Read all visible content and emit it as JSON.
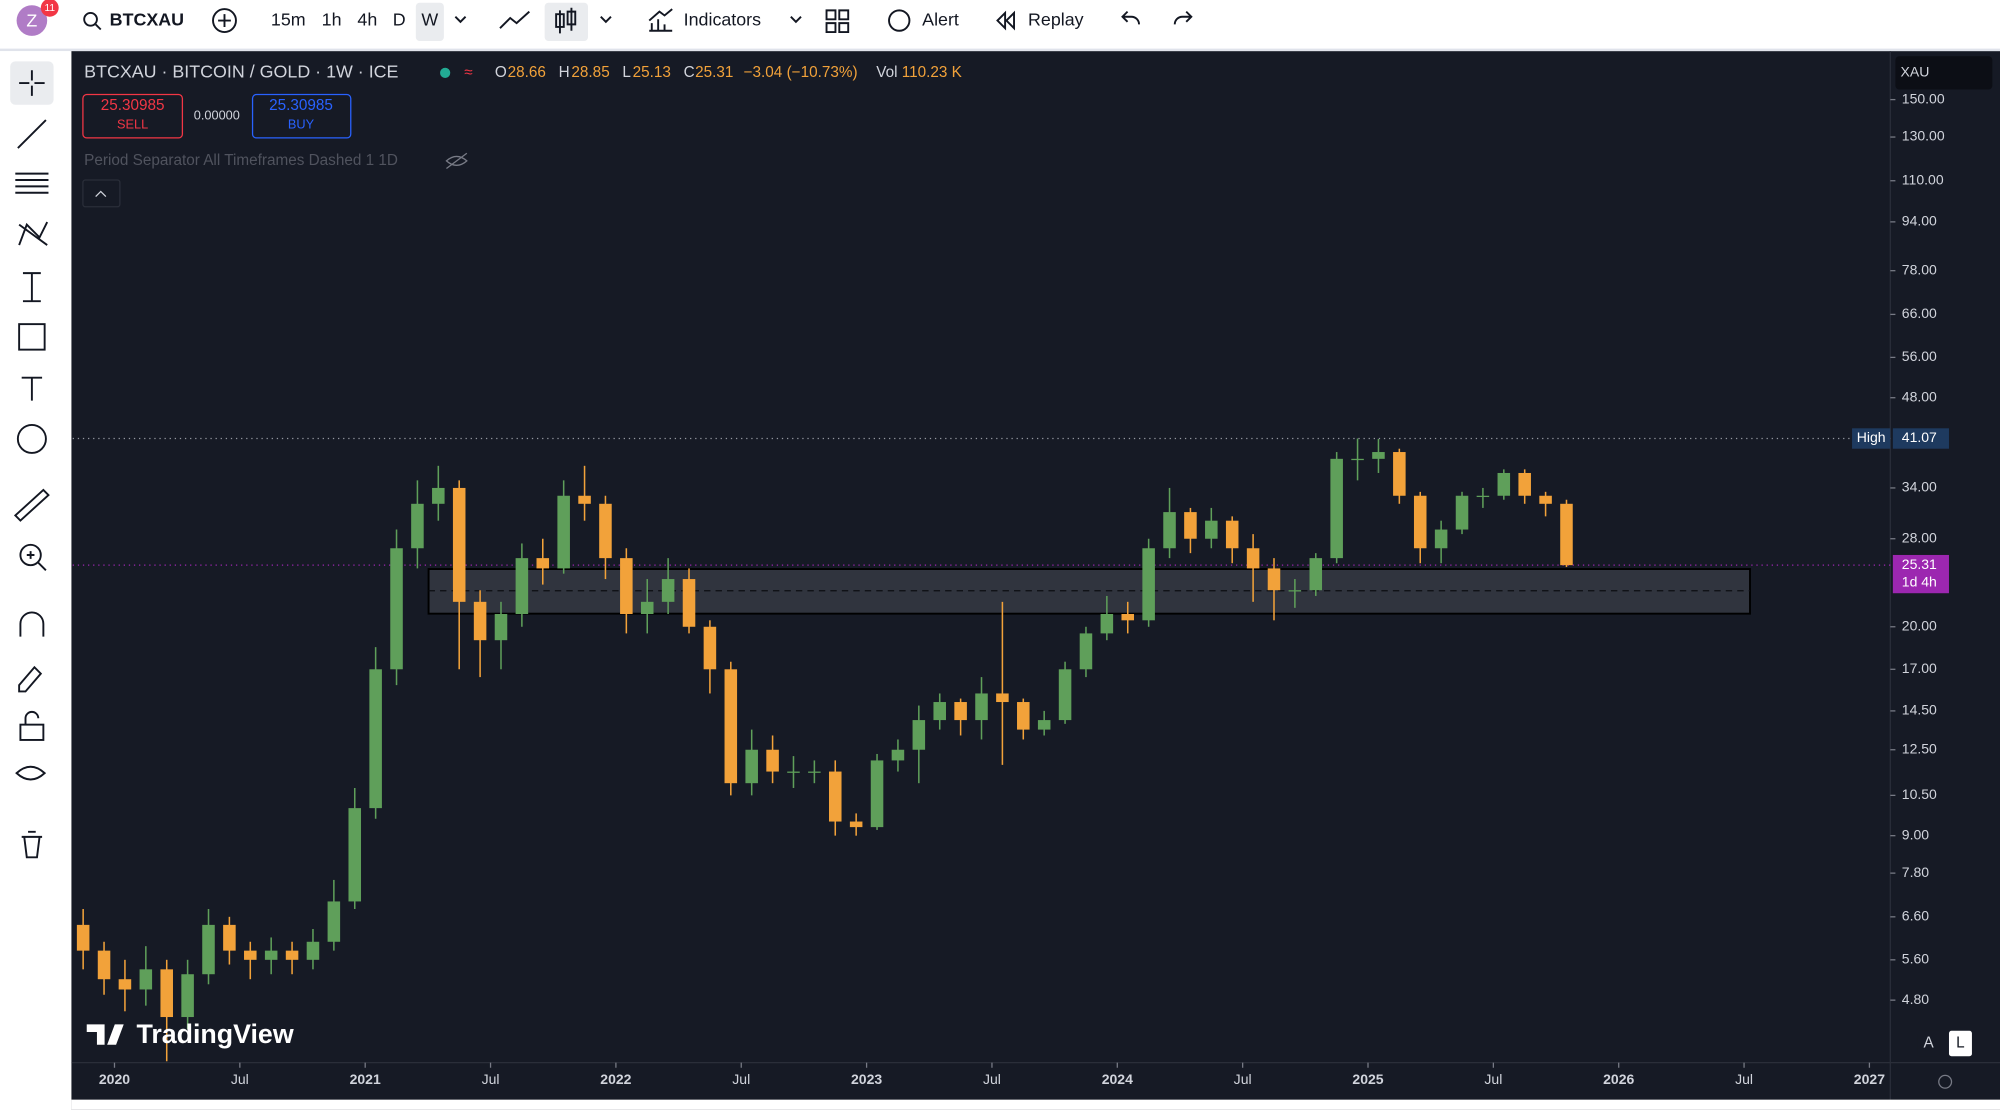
{
  "toolbar": {
    "avatar": "Z",
    "badge": "11",
    "symbol": "BTCXAU",
    "intervals": [
      "15m",
      "1h",
      "4h",
      "D",
      "W"
    ],
    "indicators": "Indicators",
    "alert": "Alert",
    "replay": "Replay"
  },
  "legend": {
    "title": "BTCXAU · BITCOIN / GOLD · 1W · ICE",
    "o_label": "O",
    "o": "28.66",
    "h_label": "H",
    "h": "28.85",
    "l_label": "L",
    "l": "25.13",
    "c_label": "C",
    "c": "25.31",
    "change": "−3.04 (−10.73%)",
    "vol_label": "Vol",
    "vol": "110.23 K",
    "sell_price": "25.30985",
    "sell": "SELL",
    "spread": "0.00000",
    "buy_price": "25.30985",
    "buy": "BUY",
    "indicator": "Period Separator All Timeframes Dashed 1 1D"
  },
  "price_axis_label": "XAU",
  "watermark": "TradingView",
  "scale_buttons": [
    "A",
    "L"
  ],
  "chart_data": {
    "type": "candlestick",
    "log_scale": true,
    "grid": false,
    "up_color": "#5f9f5a",
    "down_color": "#f2a23a",
    "x": [
      "2019-11",
      "2019-12",
      "2020-01",
      "2020-02",
      "2020-03",
      "2020-04",
      "2020-05",
      "2020-06",
      "2020-07",
      "2020-08",
      "2020-09",
      "2020-10",
      "2020-11",
      "2020-12",
      "2021-01",
      "2021-02",
      "2021-03",
      "2021-04",
      "2021-05",
      "2021-06",
      "2021-07",
      "2021-08",
      "2021-09",
      "2021-10",
      "2021-11",
      "2021-12",
      "2022-01",
      "2022-02",
      "2022-03",
      "2022-04",
      "2022-05",
      "2022-06",
      "2022-07",
      "2022-08",
      "2022-09",
      "2022-10",
      "2022-11",
      "2022-12",
      "2023-01",
      "2023-02",
      "2023-03",
      "2023-04",
      "2023-05",
      "2023-06",
      "2023-07",
      "2023-08",
      "2023-09",
      "2023-10",
      "2023-11",
      "2023-12",
      "2024-01",
      "2024-02",
      "2024-03",
      "2024-04",
      "2024-05",
      "2024-06",
      "2024-07",
      "2024-08",
      "2024-09",
      "2024-10",
      "2024-11",
      "2024-12",
      "2025-01",
      "2025-02",
      "2025-03",
      "2025-04",
      "2025-05",
      "2025-06",
      "2025-07",
      "2025-08",
      "2025-09",
      "2025-10"
    ],
    "open": [
      6.4,
      5.8,
      5.2,
      5.0,
      5.4,
      4.5,
      5.3,
      6.4,
      5.8,
      5.6,
      5.8,
      5.6,
      6.0,
      7.0,
      10.0,
      17.0,
      27.0,
      32.0,
      34.0,
      22.0,
      19.0,
      21.0,
      26.0,
      25.0,
      33.0,
      32.0,
      26.0,
      21.0,
      22.0,
      24.0,
      20.0,
      17.0,
      11.0,
      12.5,
      11.5,
      11.5,
      11.5,
      9.5,
      9.3,
      12.0,
      12.5,
      14.0,
      15.0,
      14.0,
      15.5,
      15.0,
      13.5,
      14.0,
      17.0,
      19.5,
      21.0,
      20.5,
      27.0,
      31.0,
      28.0,
      30.0,
      27.0,
      25.0,
      23.0,
      23.0,
      26.0,
      38.0,
      38.0,
      39.0,
      33.0,
      27.0,
      29.0,
      33.0,
      33.0,
      36.0,
      33.0,
      32.0
    ],
    "high": [
      6.8,
      6.0,
      5.6,
      5.9,
      5.6,
      5.6,
      6.8,
      6.6,
      6.0,
      6.1,
      6.0,
      6.3,
      7.6,
      10.8,
      18.5,
      29.0,
      35.0,
      37.0,
      35.0,
      23.0,
      22.0,
      27.5,
      28.0,
      35.0,
      37.0,
      33.0,
      27.0,
      24.0,
      26.0,
      25.0,
      20.5,
      17.5,
      13.5,
      13.2,
      12.2,
      12.0,
      12.0,
      9.8,
      12.3,
      13.0,
      14.8,
      15.5,
      15.2,
      16.5,
      22.0,
      15.2,
      14.5,
      17.5,
      20.0,
      22.5,
      22.0,
      28.0,
      34.0,
      31.5,
      31.5,
      30.5,
      28.5,
      26.0,
      24.0,
      26.5,
      39.0,
      41.07,
      41.0,
      39.5,
      33.5,
      30.0,
      33.5,
      34.0,
      36.5,
      36.5,
      33.5,
      32.5
    ],
    "low": [
      5.4,
      4.9,
      4.6,
      4.7,
      3.8,
      4.3,
      5.1,
      5.5,
      5.2,
      5.3,
      5.3,
      5.4,
      5.8,
      6.8,
      9.6,
      16.0,
      25.0,
      30.0,
      17.0,
      16.5,
      17.0,
      20.0,
      23.5,
      24.5,
      30.0,
      24.0,
      19.5,
      19.5,
      21.0,
      19.5,
      15.5,
      10.5,
      10.5,
      11.0,
      10.8,
      11.0,
      9.0,
      9.0,
      9.2,
      11.5,
      11.0,
      13.5,
      13.2,
      13.0,
      11.8,
      13.0,
      13.2,
      13.8,
      16.5,
      19.0,
      19.5,
      20.0,
      26.0,
      26.5,
      27.0,
      25.5,
      22.0,
      20.5,
      21.5,
      22.5,
      25.5,
      35.0,
      36.0,
      32.0,
      25.5,
      25.5,
      28.5,
      31.5,
      32.5,
      32.0,
      30.5,
      25.13
    ],
    "close": [
      5.8,
      5.2,
      5.0,
      5.4,
      4.5,
      5.3,
      6.4,
      5.8,
      5.6,
      5.8,
      5.6,
      6.0,
      7.0,
      10.0,
      17.0,
      27.0,
      32.0,
      34.0,
      22.0,
      19.0,
      21.0,
      26.0,
      25.0,
      33.0,
      32.0,
      26.0,
      21.0,
      22.0,
      24.0,
      20.0,
      17.0,
      11.0,
      12.5,
      11.5,
      11.5,
      11.5,
      9.5,
      9.3,
      12.0,
      12.5,
      14.0,
      15.0,
      14.0,
      15.5,
      15.0,
      13.5,
      14.0,
      17.0,
      19.5,
      21.0,
      20.5,
      27.0,
      31.0,
      28.0,
      30.0,
      27.0,
      25.0,
      23.0,
      23.0,
      26.0,
      38.0,
      38.0,
      39.0,
      33.0,
      27.0,
      29.0,
      33.0,
      33.0,
      36.0,
      33.0,
      32.0,
      25.31
    ],
    "high_label": "High",
    "countdown": "1d 4h",
    "ylim": [
      3.78,
      180.5
    ],
    "yticks": [
      {
        "value": 4.8,
        "label": "4.80"
      },
      {
        "value": 5.6,
        "label": "5.60"
      },
      {
        "value": 6.6,
        "label": "6.60"
      },
      {
        "value": 7.8,
        "label": "7.80"
      },
      {
        "value": 9,
        "label": "9.00"
      },
      {
        "value": 10.5,
        "label": "10.50"
      },
      {
        "value": 12.5,
        "label": "12.50"
      },
      {
        "value": 14.5,
        "label": "14.50"
      },
      {
        "value": 17,
        "label": "17.00"
      },
      {
        "value": 20,
        "label": "20.00"
      },
      {
        "value": 28,
        "label": "28.00"
      },
      {
        "value": 34,
        "label": "34.00"
      },
      {
        "value": 48,
        "label": "48.00"
      },
      {
        "value": 56,
        "label": "56.00"
      },
      {
        "value": 66,
        "label": "66.00"
      },
      {
        "value": 78,
        "label": "78.00"
      },
      {
        "value": 94,
        "label": "94.00"
      },
      {
        "value": 110,
        "label": "110.00"
      },
      {
        "value": 130,
        "label": "130.00"
      },
      {
        "value": 150,
        "label": "150.00"
      }
    ],
    "xlim": [
      "2019-11",
      "2027-02"
    ],
    "xticks": [
      {
        "value": "2020-01",
        "label": "2020"
      },
      {
        "value": "2020-07",
        "label": "Jul"
      },
      {
        "value": "2021-01",
        "label": "2021"
      },
      {
        "value": "2021-07",
        "label": "Jul"
      },
      {
        "value": "2022-01",
        "label": "2022"
      },
      {
        "value": "2022-07",
        "label": "Jul"
      },
      {
        "value": "2023-01",
        "label": "2023"
      },
      {
        "value": "2023-07",
        "label": "Jul"
      },
      {
        "value": "2024-01",
        "label": "2024"
      },
      {
        "value": "2024-07",
        "label": "Jul"
      },
      {
        "value": "2025-01",
        "label": "2025"
      },
      {
        "value": "2025-07",
        "label": "Jul"
      },
      {
        "value": "2026-01",
        "label": "2026"
      },
      {
        "value": "2026-07",
        "label": "Jul"
      },
      {
        "value": "2027-01",
        "label": "2027"
      }
    ]
  }
}
